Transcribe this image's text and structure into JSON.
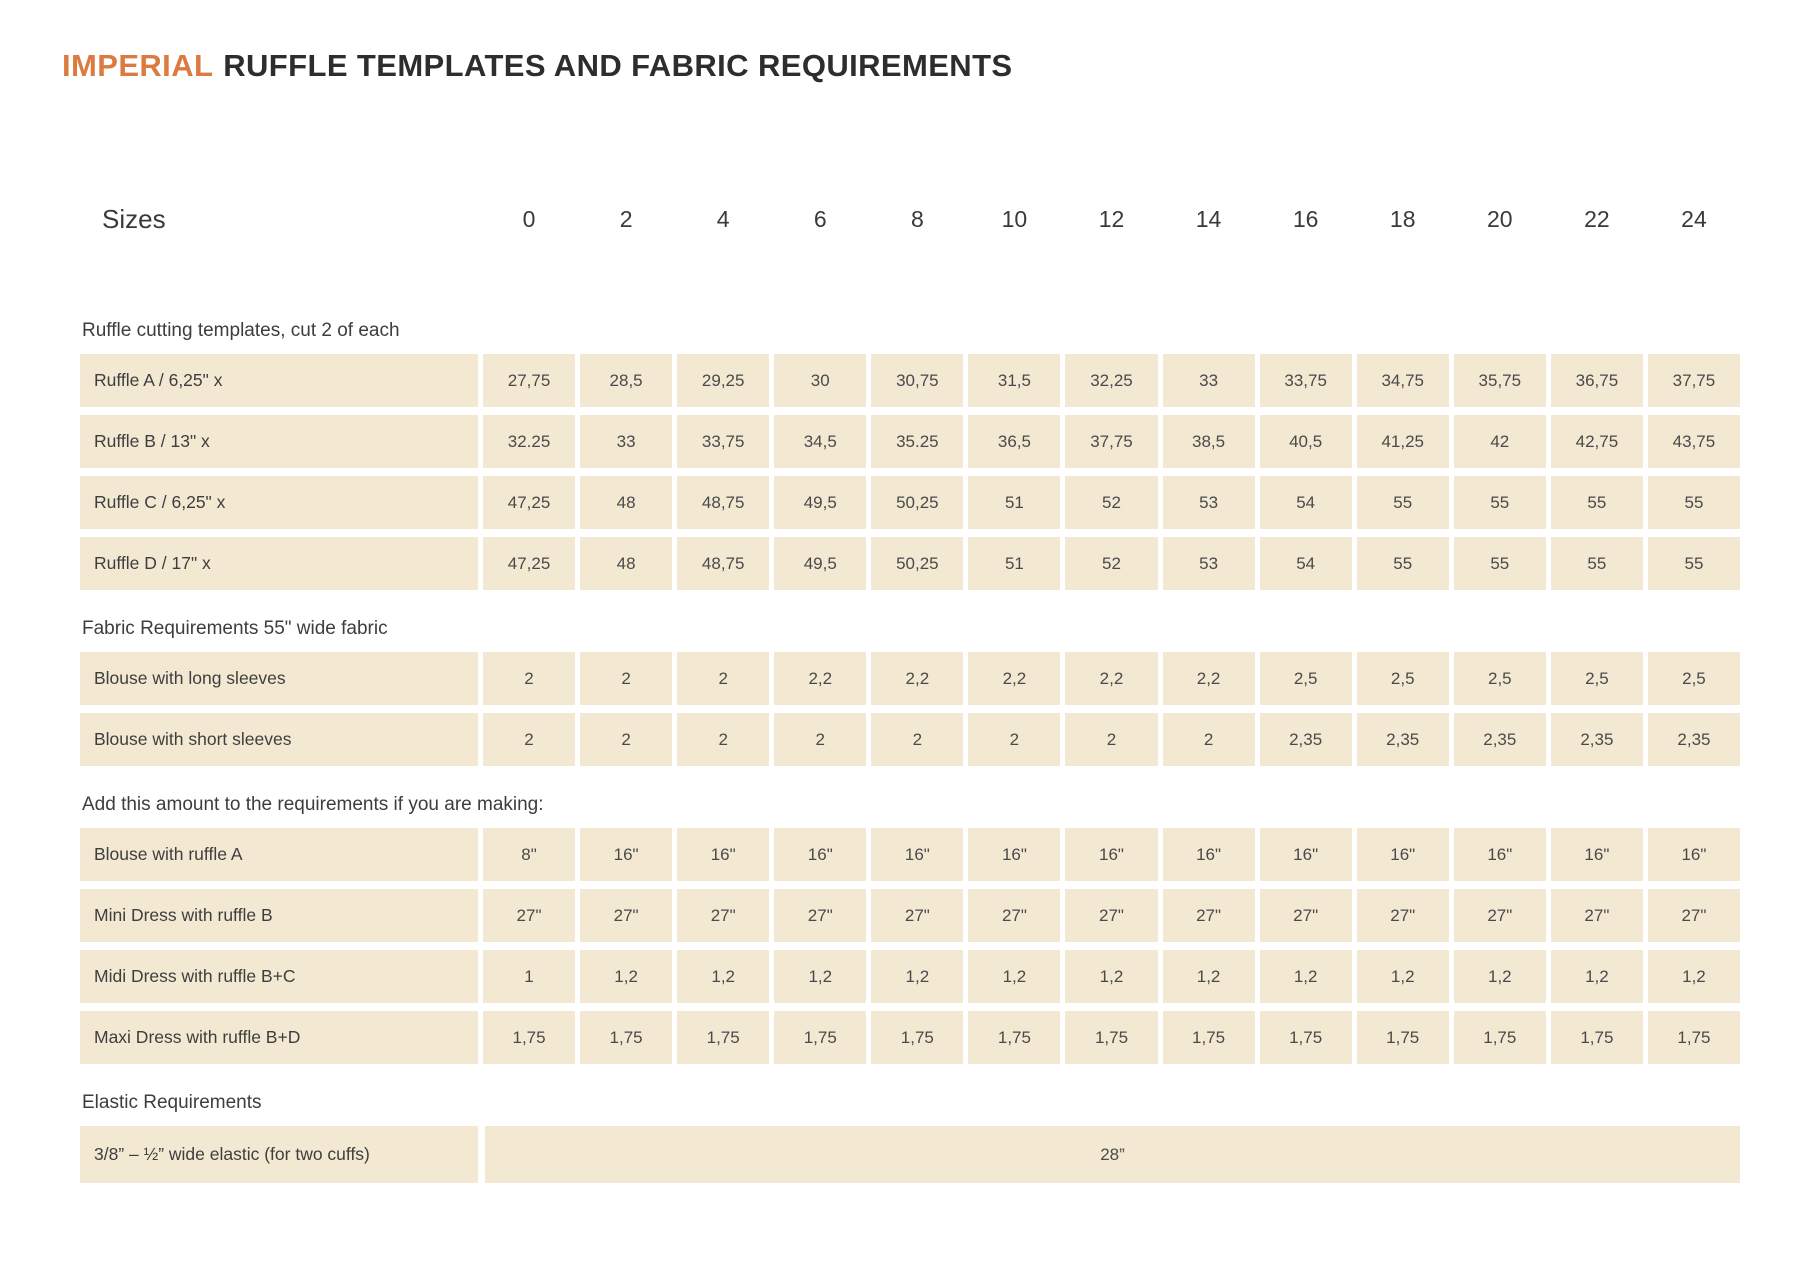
{
  "title": {
    "highlight": "IMPERIAL",
    "rest": "RUFFLE TEMPLATES AND FABRIC REQUIREMENTS"
  },
  "colors": {
    "accent": "#dc7b41",
    "cell_background": "#f3e9d3",
    "text": "#3e3e3e"
  },
  "table": {
    "sizes_label": "Sizes",
    "size_columns": [
      "0",
      "2",
      "4",
      "6",
      "8",
      "10",
      "12",
      "14",
      "16",
      "18",
      "20",
      "22",
      "24"
    ],
    "sections": [
      {
        "heading": "Ruffle cutting templates, cut 2 of each",
        "rows": [
          {
            "label": "Ruffle A / 6,25\" x",
            "values": [
              "27,75",
              "28,5",
              "29,25",
              "30",
              "30,75",
              "31,5",
              "32,25",
              "33",
              "33,75",
              "34,75",
              "35,75",
              "36,75",
              "37,75"
            ]
          },
          {
            "label": "Ruffle B / 13\" x",
            "values": [
              "32.25",
              "33",
              "33,75",
              "34,5",
              "35.25",
              "36,5",
              "37,75",
              "38,5",
              "40,5",
              "41,25",
              "42",
              "42,75",
              "43,75"
            ]
          },
          {
            "label": "Ruffle C / 6,25\" x",
            "values": [
              "47,25",
              "48",
              "48,75",
              "49,5",
              "50,25",
              "51",
              "52",
              "53",
              "54",
              "55",
              "55",
              "55",
              "55"
            ]
          },
          {
            "label": "Ruffle D / 17\" x",
            "values": [
              "47,25",
              "48",
              "48,75",
              "49,5",
              "50,25",
              "51",
              "52",
              "53",
              "54",
              "55",
              "55",
              "55",
              "55"
            ]
          }
        ]
      },
      {
        "heading": "Fabric Requirements 55\" wide fabric",
        "rows": [
          {
            "label": "Blouse with long sleeves",
            "values": [
              "2",
              "2",
              "2",
              "2,2",
              "2,2",
              "2,2",
              "2,2",
              "2,2",
              "2,5",
              "2,5",
              "2,5",
              "2,5",
              "2,5"
            ]
          },
          {
            "label": "Blouse with short sleeves",
            "values": [
              "2",
              "2",
              "2",
              "2",
              "2",
              "2",
              "2",
              "2",
              "2,35",
              "2,35",
              "2,35",
              "2,35",
              "2,35"
            ]
          }
        ]
      },
      {
        "heading": "Add this amount to the requirements if you are making:",
        "rows": [
          {
            "label": "Blouse with ruffle A",
            "values": [
              "8\"",
              "16\"",
              "16\"",
              "16\"",
              "16\"",
              "16\"",
              "16\"",
              "16\"",
              "16\"",
              "16\"",
              "16\"",
              "16\"",
              "16\""
            ]
          },
          {
            "label": "Mini Dress with ruffle B",
            "values": [
              "27\"",
              "27\"",
              "27\"",
              "27\"",
              "27\"",
              "27\"",
              "27\"",
              "27\"",
              "27\"",
              "27\"",
              "27\"",
              "27\"",
              "27\""
            ]
          },
          {
            "label": "Midi Dress with ruffle B+C",
            "values": [
              "1",
              "1,2",
              "1,2",
              "1,2",
              "1,2",
              "1,2",
              "1,2",
              "1,2",
              "1,2",
              "1,2",
              "1,2",
              "1,2",
              "1,2"
            ]
          },
          {
            "label": "Maxi Dress with ruffle B+D",
            "values": [
              "1,75",
              "1,75",
              "1,75",
              "1,75",
              "1,75",
              "1,75",
              "1,75",
              "1,75",
              "1,75",
              "1,75",
              "1,75",
              "1,75",
              "1,75"
            ]
          }
        ]
      },
      {
        "heading": "Elastic Requirements",
        "rows": [
          {
            "label": "3/8” – ½” wide elastic (for two cuffs)",
            "merged_value": "28”"
          }
        ]
      }
    ]
  }
}
